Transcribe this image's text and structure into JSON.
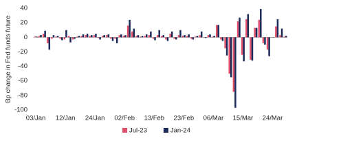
{
  "chart_data": {
    "type": "bar",
    "ylabel": "Bp change in Fed funds future",
    "categories": [
      "03/Jan",
      null,
      null,
      null,
      null,
      null,
      null,
      "12/Jan",
      null,
      null,
      null,
      null,
      null,
      null,
      "24/Jan",
      null,
      null,
      null,
      null,
      null,
      null,
      "02/Feb",
      null,
      null,
      null,
      null,
      null,
      null,
      "13/Feb",
      null,
      null,
      null,
      null,
      null,
      null,
      "23/Feb",
      null,
      null,
      null,
      null,
      null,
      null,
      "06/Mar",
      null,
      null,
      null,
      null,
      null,
      null,
      "15/Mar",
      null,
      null,
      null,
      null,
      null,
      null,
      "24/Mar",
      null,
      null,
      null
    ],
    "series": [
      {
        "name": "Jul-23",
        "color": "#e0506a",
        "values": [
          1,
          2,
          5,
          -8,
          -2,
          1,
          -2,
          -3,
          2,
          -3,
          1,
          2,
          3,
          2,
          3,
          -1,
          2,
          3,
          -2,
          -2,
          3,
          2,
          16,
          8,
          2,
          1,
          2,
          3,
          -2,
          3,
          2,
          -3,
          5,
          -2,
          3,
          2,
          2,
          -2,
          1,
          3,
          0,
          3,
          1,
          17,
          -3,
          -15,
          -50,
          -75,
          22,
          -24,
          25,
          -31,
          13,
          24,
          -8,
          -17,
          0,
          15,
          3,
          1
        ]
      },
      {
        "name": "Jan-24",
        "color": "#1c2a5a",
        "values": [
          1,
          3,
          9,
          -17,
          3,
          2,
          -4,
          10,
          -7,
          -2,
          2,
          4,
          5,
          3,
          5,
          -3,
          3,
          4,
          -5,
          -8,
          4,
          3,
          24,
          12,
          3,
          2,
          4,
          8,
          -4,
          10,
          3,
          -5,
          8,
          -3,
          10,
          3,
          4,
          -3,
          2,
          8,
          -1,
          4,
          2,
          17,
          -5,
          -25,
          -55,
          -97,
          27,
          -33,
          32,
          -32,
          13,
          39,
          -10,
          -26,
          0,
          25,
          12,
          2
        ]
      }
    ],
    "ylim": [
      -100,
      40
    ],
    "yticks": [
      -100,
      -80,
      -60,
      -40,
      -20,
      0,
      20,
      40
    ],
    "grid": false
  }
}
